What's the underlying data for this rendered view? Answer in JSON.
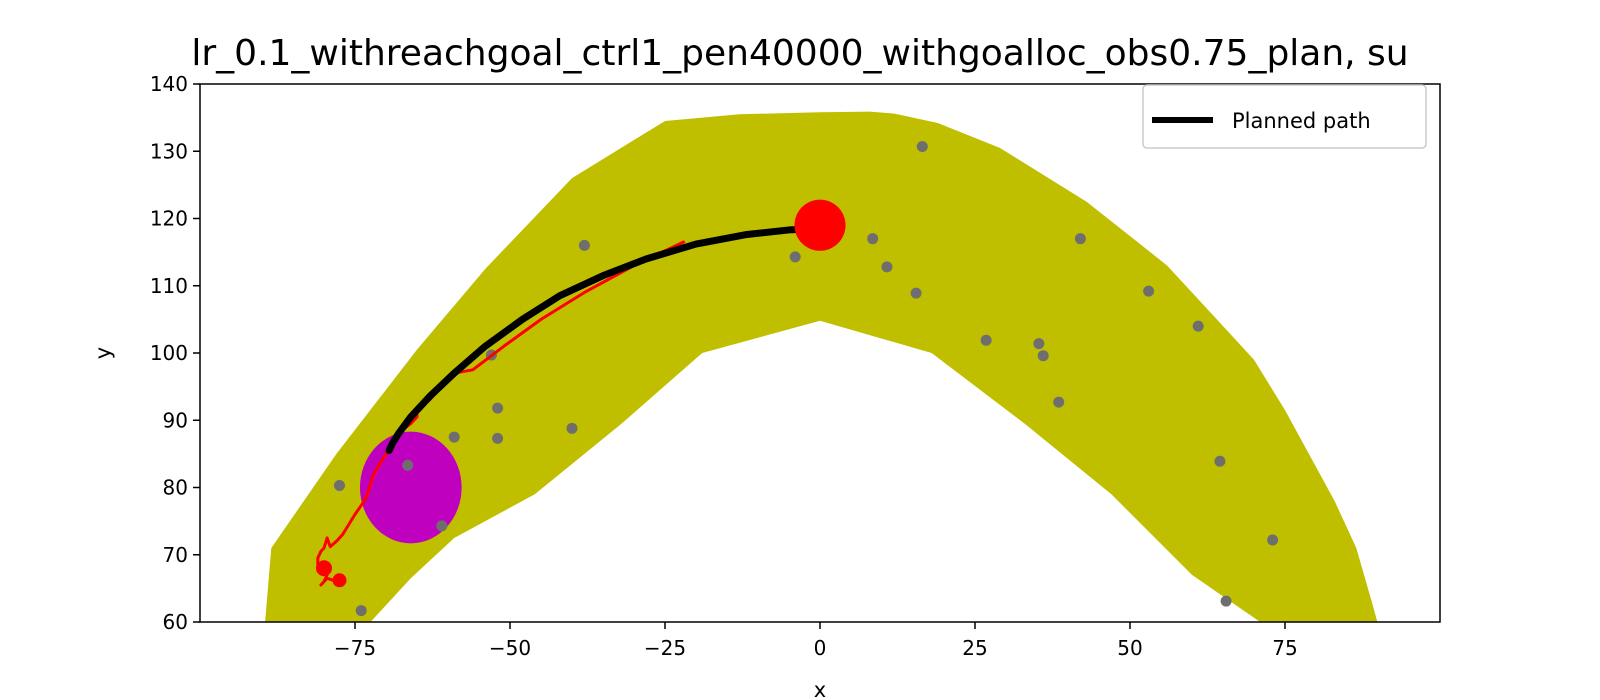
{
  "chart_data": {
    "type": "scatter",
    "title": "lr_0.1_withreachgoal_ctrl1_pen40000_withgoalloc_obs0.75_plan, su",
    "xlabel": "x",
    "ylabel": "y",
    "xlim": [
      -100,
      100
    ],
    "ylim": [
      60,
      140
    ],
    "xticks": [
      -75,
      -50,
      -25,
      0,
      25,
      50,
      75
    ],
    "yticks": [
      60,
      70,
      80,
      90,
      100,
      110,
      120,
      130,
      140
    ],
    "grid": false,
    "legend": {
      "placement": "top-right",
      "entries": [
        {
          "label": "Planned path",
          "color": "#000000"
        }
      ]
    },
    "corridor": {
      "color": "#bfbf00",
      "outer": [
        [
          -89.5,
          60
        ],
        [
          -88.5,
          71
        ],
        [
          -78,
          85
        ],
        [
          -65,
          100.5
        ],
        [
          -54,
          112.5
        ],
        [
          -40,
          126
        ],
        [
          -25,
          134.5
        ],
        [
          -13,
          135.5
        ],
        [
          0,
          135.8
        ],
        [
          8,
          135.9
        ],
        [
          12,
          135.6
        ],
        [
          19,
          134.2
        ],
        [
          29,
          130.5
        ],
        [
          43,
          122.5
        ],
        [
          56,
          113
        ],
        [
          63,
          106
        ],
        [
          70,
          99
        ],
        [
          75,
          91.5
        ],
        [
          83,
          78
        ],
        [
          86.5,
          71
        ],
        [
          89,
          63
        ],
        [
          89.9,
          60
        ]
      ],
      "inner": [
        [
          -72.5,
          60
        ],
        [
          -66,
          66.5
        ],
        [
          -59,
          72.5
        ],
        [
          -46,
          79
        ],
        [
          -32,
          89.5
        ],
        [
          -19,
          100
        ],
        [
          0,
          104.8
        ],
        [
          18,
          100
        ],
        [
          33,
          89.5
        ],
        [
          47,
          79
        ],
        [
          60,
          67
        ],
        [
          71,
          60
        ]
      ]
    },
    "obstacle": {
      "x": -66,
      "y": 80,
      "rx": 8.2,
      "ry": 8.3,
      "color": "#bf00bf"
    },
    "goal": {
      "x": 0,
      "y": 119,
      "r": 3.8,
      "color": "#ff0000"
    },
    "start_marker": {
      "x": -80,
      "y": 68,
      "color": "#ff0000"
    },
    "points_color": "#6e6e6e",
    "points": [
      [
        16.5,
        130.7
      ],
      [
        -38,
        116
      ],
      [
        8.5,
        117
      ],
      [
        -4,
        114.3
      ],
      [
        10.8,
        112.8
      ],
      [
        15.5,
        108.9
      ],
      [
        42,
        117
      ],
      [
        53,
        109.2
      ],
      [
        61,
        104
      ],
      [
        26.8,
        101.9
      ],
      [
        35.3,
        101.4
      ],
      [
        36,
        99.6
      ],
      [
        38.5,
        92.7
      ],
      [
        -53,
        99.7
      ],
      [
        -52,
        91.8
      ],
      [
        -40,
        88.8
      ],
      [
        -59,
        87.5
      ],
      [
        -52,
        87.3
      ],
      [
        -66.5,
        83.3
      ],
      [
        -77.5,
        80.3
      ],
      [
        -61,
        74.3
      ],
      [
        64.5,
        83.9
      ],
      [
        73,
        72.2
      ],
      [
        65.5,
        63.1
      ],
      [
        -74,
        61.7
      ]
    ],
    "series": [
      {
        "name": "Planned path",
        "color": "#000000",
        "points": [
          [
            0,
            118.5
          ],
          [
            -5,
            118.3
          ],
          [
            -12,
            117.6
          ],
          [
            -20,
            116.2
          ],
          [
            -28,
            114
          ],
          [
            -35,
            111.5
          ],
          [
            -42,
            108.5
          ],
          [
            -48,
            105
          ],
          [
            -54,
            101
          ],
          [
            -59,
            97
          ],
          [
            -63,
            93.5
          ],
          [
            -66,
            90.5
          ],
          [
            -68,
            88
          ],
          [
            -69,
            86.5
          ],
          [
            -69.5,
            85.5
          ]
        ]
      },
      {
        "color": "#ff0000",
        "points": [
          [
            -22,
            116.5
          ],
          [
            -30,
            113
          ],
          [
            -38,
            109
          ],
          [
            -45,
            105
          ],
          [
            -51,
            101
          ],
          [
            -56,
            97.5
          ],
          [
            -59,
            97
          ],
          [
            -63,
            93
          ],
          [
            -65,
            91.5
          ],
          [
            -65,
            90.5
          ],
          [
            -66,
            89.5
          ],
          [
            -67,
            88.8
          ],
          [
            -68,
            87.8
          ],
          [
            -69,
            86.5
          ],
          [
            -70,
            85
          ],
          [
            -71,
            83.5
          ],
          [
            -72,
            82
          ],
          [
            -72.5,
            80.5
          ],
          [
            -73,
            79
          ],
          [
            -73.5,
            78
          ],
          [
            -75,
            76
          ],
          [
            -76,
            74.5
          ],
          [
            -77,
            73
          ],
          [
            -78,
            72
          ],
          [
            -79,
            71.2
          ],
          [
            -79.5,
            72.5
          ],
          [
            -80,
            71
          ],
          [
            -80.5,
            70.5
          ],
          [
            -81,
            69.5
          ],
          [
            -81,
            68.5
          ],
          [
            -80.5,
            67.5
          ],
          [
            -79.5,
            67
          ],
          [
            -80,
            66
          ],
          [
            -80.5,
            65.5
          ],
          [
            -79.5,
            66.5
          ],
          [
            -78.5,
            66.2
          ]
        ]
      }
    ]
  }
}
